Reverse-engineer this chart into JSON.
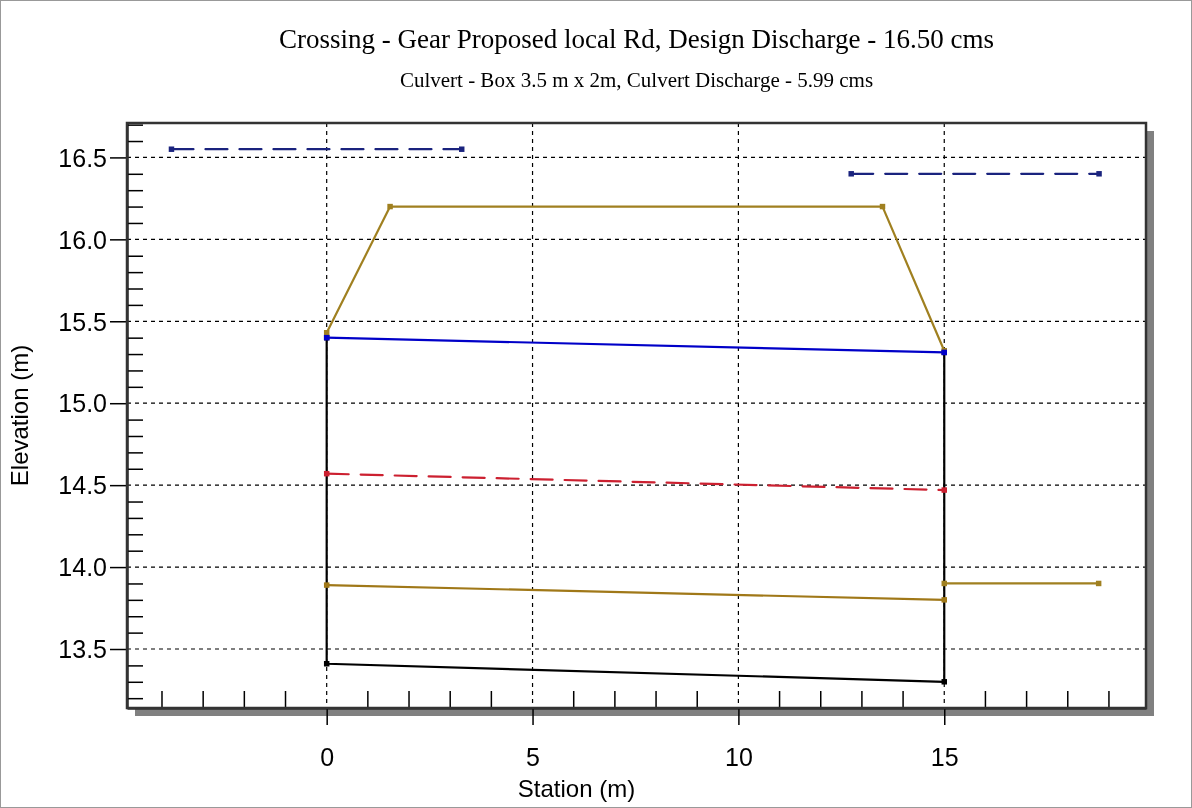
{
  "chart_data": {
    "type": "line",
    "title": "Crossing - Gear Proposed local Rd, Design Discharge - 16.50 cms",
    "subtitle": "Culvert - Box 3.5 m x 2m, Culvert Discharge - 5.99 cms",
    "xlabel": "Station (m)",
    "ylabel": "Elevation (m)",
    "xlim": [
      -4.85,
      19.9
    ],
    "ylim": [
      13.14,
      16.71
    ],
    "xticks": [
      0,
      5,
      10,
      15
    ],
    "yticks": [
      {
        "value": 13.2,
        "label": null
      },
      {
        "value": 13.3,
        "label": null
      },
      {
        "value": 13.4,
        "label": null
      },
      13.5,
      {
        "value": 13.6,
        "label": null
      },
      {
        "value": 13.7,
        "label": null
      },
      {
        "value": 13.8,
        "label": null
      },
      {
        "value": 13.9,
        "label": null
      },
      {
        "value": 14.0,
        "label": "14.0"
      },
      {
        "value": 14.1,
        "label": null
      },
      {
        "value": 14.2,
        "label": null
      },
      {
        "value": 14.3,
        "label": null
      },
      {
        "value": 14.4,
        "label": null
      },
      14.5,
      {
        "value": 14.6,
        "label": null
      },
      {
        "value": 14.7,
        "label": null
      },
      {
        "value": 14.8,
        "label": null
      },
      {
        "value": 14.9,
        "label": null
      },
      {
        "value": 15.0,
        "label": "15.0"
      },
      {
        "value": 15.1,
        "label": null
      },
      {
        "value": 15.2,
        "label": null
      },
      {
        "value": 15.3,
        "label": null
      },
      {
        "value": 15.4,
        "label": null
      },
      15.5,
      {
        "value": 15.6,
        "label": null
      },
      {
        "value": 15.7,
        "label": null
      },
      {
        "value": 15.8,
        "label": null
      },
      {
        "value": 15.9,
        "label": null
      },
      {
        "value": 16.0,
        "label": "16.0"
      },
      {
        "value": 16.1,
        "label": null
      },
      {
        "value": 16.2,
        "label": null
      },
      {
        "value": 16.3,
        "label": null
      },
      {
        "value": 16.4,
        "label": null
      },
      16.5,
      {
        "value": 16.6,
        "label": null
      },
      {
        "value": 16.7,
        "label": null
      }
    ],
    "grid": true,
    "marker": "square",
    "series": [
      {
        "color": "#000000",
        "x": [
          0,
          0,
          15,
          15
        ],
        "values": [
          15.4,
          13.41,
          13.3,
          15.31
        ]
      },
      {
        "color": "#a08020",
        "x": [
          0,
          1.54,
          13.5,
          15
        ],
        "values": [
          15.43,
          16.2,
          16.2,
          15.32
        ]
      },
      {
        "color": "#0000c8",
        "x": [
          0,
          15
        ],
        "values": [
          15.4,
          15.31
        ]
      },
      {
        "color": "#cc2030",
        "x": [
          0,
          15
        ],
        "values": [
          14.57,
          14.47
        ],
        "line_style": "dashed"
      },
      {
        "color": "#a07818",
        "x": [
          0,
          15
        ],
        "values": [
          13.89,
          13.8
        ]
      },
      {
        "color": "#a08020",
        "x": [
          15,
          18.75
        ],
        "values": [
          13.9,
          13.9
        ]
      },
      {
        "color": "#1a237e",
        "x": [
          -3.77,
          3.28
        ],
        "values": [
          16.55,
          16.55
        ],
        "line_style": "dashed"
      },
      {
        "color": "#1a237e",
        "x": [
          12.74,
          18.76
        ],
        "values": [
          16.4,
          16.4
        ],
        "line_style": "dashed"
      }
    ]
  }
}
